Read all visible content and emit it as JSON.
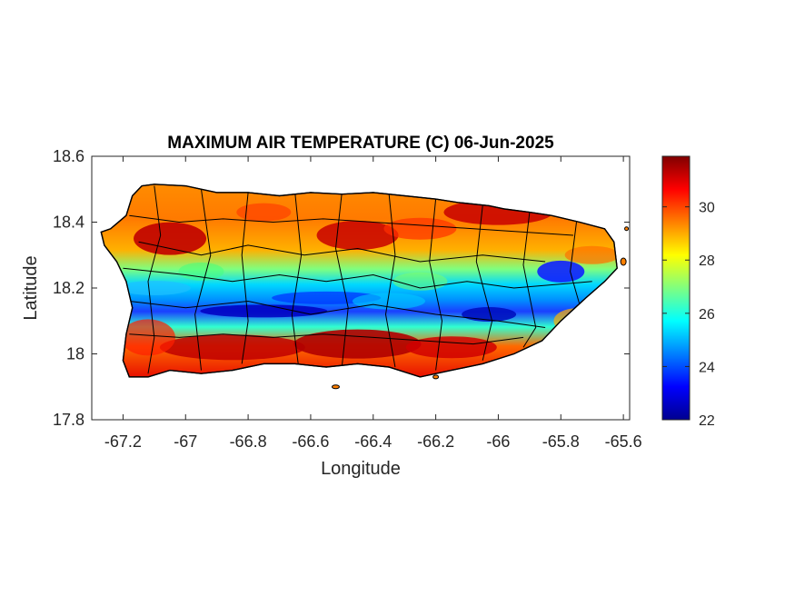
{
  "chart_data": {
    "type": "heatmap",
    "title": "MAXIMUM AIR TEMPERATURE (C) 06-Jun-2025",
    "xlabel": "Longitude",
    "ylabel": "Latitude",
    "xlim": [
      -67.3,
      -65.58
    ],
    "ylim": [
      17.8,
      18.6
    ],
    "xticks": [
      -67.2,
      -67,
      -66.8,
      -66.6,
      -66.4,
      -66.2,
      -66,
      -65.8,
      -65.6
    ],
    "xtick_labels": [
      "-67.2",
      "-67",
      "-66.8",
      "-66.6",
      "-66.4",
      "-66.2",
      "-66",
      "-65.8",
      "-65.6"
    ],
    "yticks": [
      17.8,
      18,
      18.2,
      18.4,
      18.6
    ],
    "ytick_labels": [
      "17.8",
      "18",
      "18.2",
      "18.4",
      "18.6"
    ],
    "colorbar": {
      "colormap": "jet",
      "range": [
        22,
        31.9
      ],
      "ticks": [
        22,
        24,
        26,
        28,
        30
      ],
      "tick_labels": [
        "22",
        "24",
        "26",
        "28",
        "30"
      ]
    },
    "grid": false,
    "overlay": "municipality boundaries",
    "patterns": {
      "mountain_axis_min_c": 23,
      "north_coast_c": 30,
      "south_coast_c": 31
    }
  }
}
